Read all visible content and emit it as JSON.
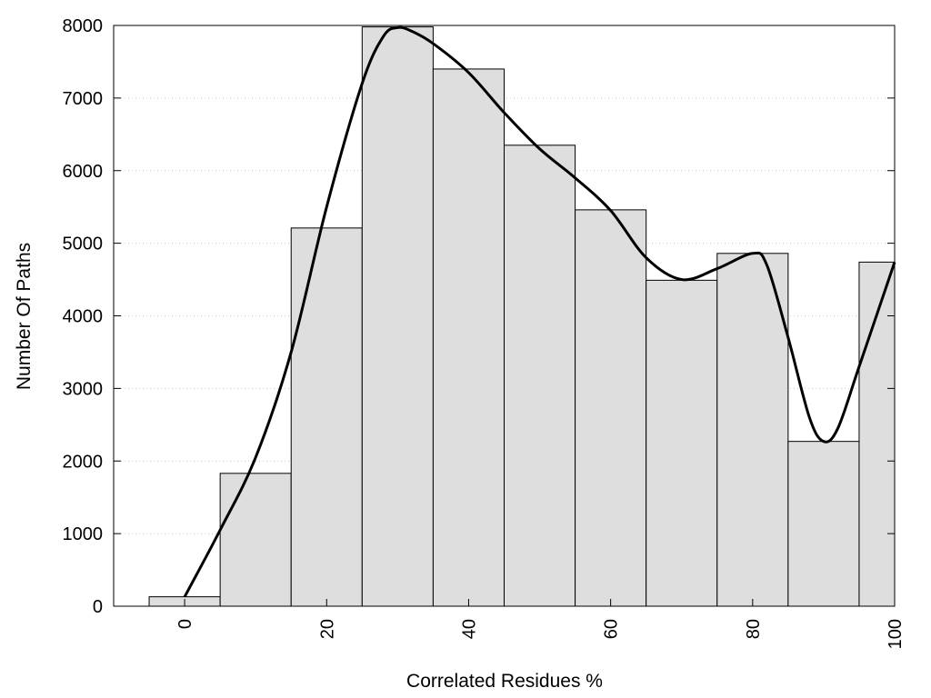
{
  "chart_data": {
    "type": "bar",
    "title": "",
    "xlabel": "Correlated Residues %",
    "ylabel": "Number Of Paths",
    "xlim": [
      -10,
      100
    ],
    "ylim": [
      0,
      8000
    ],
    "grid": "horizontal dotted",
    "x_ticks": [
      0,
      20,
      40,
      60,
      80,
      100
    ],
    "y_ticks": [
      0,
      1000,
      2000,
      3000,
      4000,
      5000,
      6000,
      7000,
      8000
    ],
    "bin_width": 10,
    "bins": [
      {
        "center": 0,
        "value": 130
      },
      {
        "center": 10,
        "value": 1830
      },
      {
        "center": 20,
        "value": 5210
      },
      {
        "center": 30,
        "value": 7980
      },
      {
        "center": 40,
        "value": 7400
      },
      {
        "center": 50,
        "value": 6350
      },
      {
        "center": 60,
        "value": 5460
      },
      {
        "center": 70,
        "value": 4490
      },
      {
        "center": 80,
        "value": 4860
      },
      {
        "center": 90,
        "value": 2270
      },
      {
        "center": 100,
        "value": 4740
      }
    ],
    "smooth_curve": {
      "x": [
        0,
        5,
        10,
        15,
        20,
        25,
        28,
        30,
        32,
        35,
        40,
        45,
        50,
        55,
        60,
        65,
        70,
        75,
        80,
        82,
        85,
        88,
        90,
        92,
        95,
        100
      ],
      "y": [
        130,
        1050,
        2050,
        3500,
        5500,
        7200,
        7850,
        7970,
        7920,
        7750,
        7350,
        6800,
        6300,
        5900,
        5450,
        4800,
        4500,
        4650,
        4860,
        4700,
        3700,
        2600,
        2270,
        2450,
        3300,
        4740
      ]
    },
    "colors": {
      "bar_fill": "#dedede",
      "bar_stroke": "#000000",
      "line": "#000000"
    }
  }
}
